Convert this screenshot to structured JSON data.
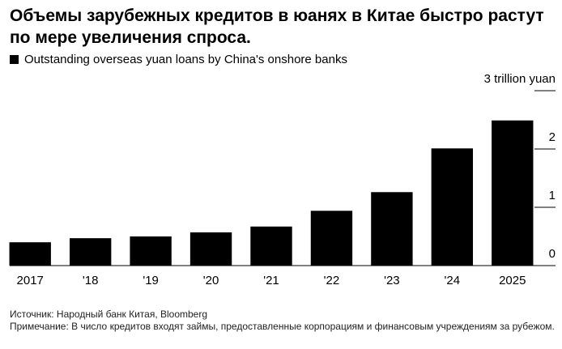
{
  "chart_data": {
    "type": "bar",
    "title": "Объемы зарубежных кредитов в юанях в Китае быстро растут по мере увеличения спроса.",
    "legend": "Outstanding overseas yuan loans by China's onshore banks",
    "categories": [
      "2017",
      "'18",
      "'19",
      "'20",
      "'21",
      "'22",
      "'23",
      "'24",
      "2025"
    ],
    "values": [
      0.4,
      0.47,
      0.5,
      0.57,
      0.67,
      0.94,
      1.26,
      2.01,
      2.49
    ],
    "color": "#000000",
    "ylim": [
      0,
      3
    ],
    "yticks": [
      0,
      1,
      2,
      {
        "value": 3,
        "label": "3 trillion yuan"
      }
    ],
    "y_axis_side": "right",
    "source": "Источник: Народный банк Китая, Bloomberg",
    "note": "Примечание: В число кредитов входят займы, предоставленные корпорациям и финансовым учреждениям за рубежом."
  }
}
